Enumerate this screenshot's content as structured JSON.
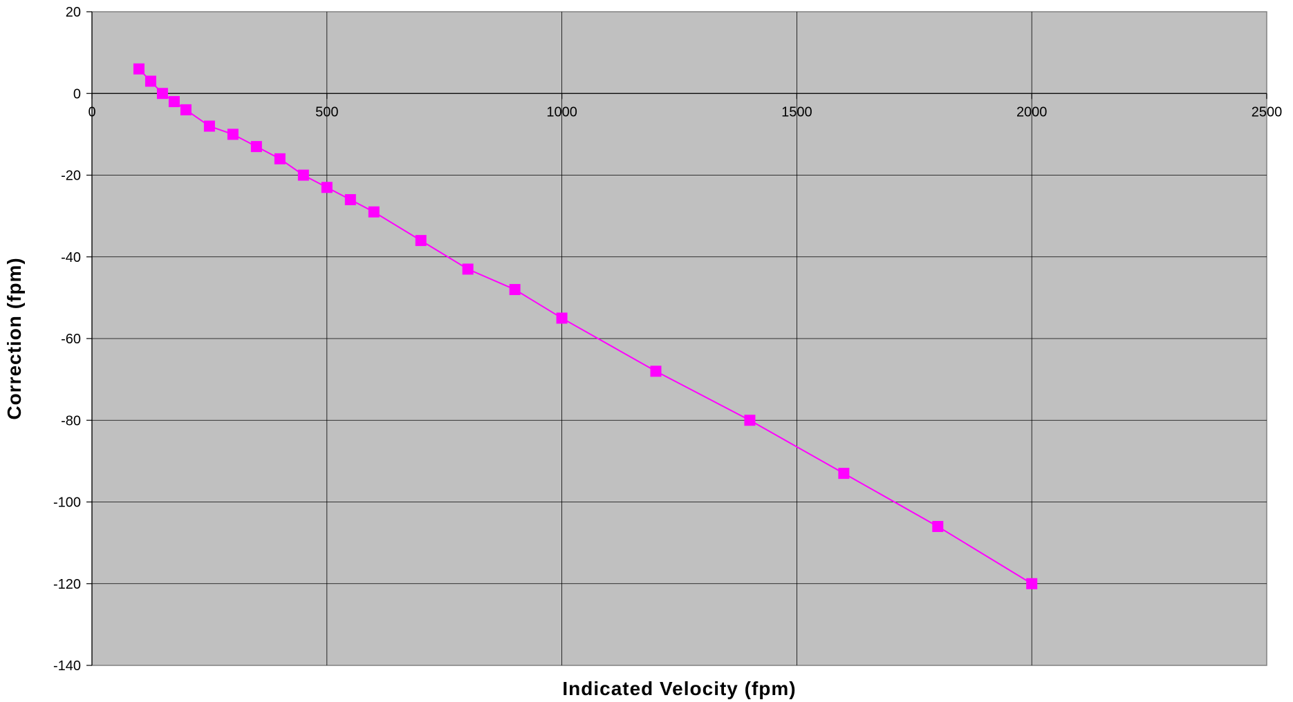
{
  "chart_data": {
    "type": "line",
    "title": "",
    "xlabel": "Indicated Velocity (fpm)",
    "ylabel": "Correction (fpm)",
    "xlim": [
      0,
      2500
    ],
    "ylim": [
      -140,
      20
    ],
    "x_ticks": [
      0,
      500,
      1000,
      1500,
      2000,
      2500
    ],
    "y_ticks": [
      20,
      0,
      -20,
      -40,
      -60,
      -80,
      -100,
      -120,
      -140
    ],
    "x_tick_labels": [
      "0",
      "500",
      "1000",
      "1500",
      "2000",
      "2500"
    ],
    "y_tick_labels": [
      "20",
      "0",
      "-20",
      "-40",
      "-60",
      "-80",
      "-100",
      "-120",
      "-140"
    ],
    "grid": true,
    "legend": "none",
    "series": [
      {
        "x": [
          100,
          125,
          150,
          175,
          200,
          250,
          300,
          350,
          400,
          450,
          500,
          550,
          600,
          700,
          800,
          900,
          1000,
          1200,
          1400,
          1600,
          1800,
          2000
        ],
        "y": [
          6,
          3,
          0,
          -2,
          -4,
          -8,
          -10,
          -13,
          -16,
          -20,
          -23,
          -26,
          -29,
          -36,
          -43,
          -48,
          -55,
          -68,
          -80,
          -93,
          -106,
          -120
        ],
        "color": "#ff00ff",
        "marker": "square"
      }
    ],
    "plot_background": "#c0c0c0",
    "grid_color": "#000000"
  }
}
